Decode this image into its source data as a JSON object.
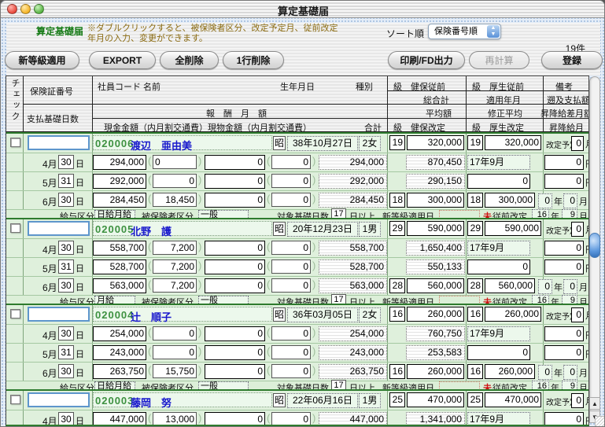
{
  "window": {
    "title": "算定基礎届"
  },
  "header": {
    "screen_title": "算定基礎届",
    "note_line1": "※ダブルクリックすると、被保険者区分、改定予定月、従前改定",
    "note_line2": "年月の入力、変更ができます。",
    "sort_label": "ソート順",
    "sort_value": "保険番号順",
    "count": "19件"
  },
  "toolbar": {
    "new_grade": "新等級適用",
    "export": "EXPORT",
    "delete_all": "全削除",
    "delete_row": "1行削除",
    "print_fd": "印刷/FD出力",
    "recalc": "再計算",
    "register": "登録"
  },
  "thead": {
    "check": "チェック",
    "hoken_no": "保険証番号",
    "shiharai_days": "支払基礎日数",
    "emp": "社員コード 名前",
    "birth": "生年月日",
    "kind": "種別",
    "hoshu": "報　酬　月　額",
    "cash_line": "現金金額（内月割交通費）現物金額（内月割交通費）",
    "goukei": "合計",
    "kenpo_before": "級　健保従前",
    "kosei_before": "級　厚生従前",
    "biko": "備考",
    "sougoukei": "総合計",
    "tekiyo_ym": "適用年月",
    "sokyuu": "遡及支払額",
    "heikin": "平均額",
    "shusei": "修正平均",
    "diff": "昇降給差月額",
    "kenpo_after": "級　健保改定",
    "kosei_after": "級　厚生改定",
    "updown_month": "昇降給月"
  },
  "labels": {
    "era": "昭",
    "kaitei_yotei": "改定予定",
    "month": "月",
    "day": "日",
    "yen": "円",
    "year": "年",
    "pay_type": "給与区分",
    "insured_type": "被保険者区分",
    "target_days": "対象基礎日数",
    "days_min": "日以上",
    "new_grade_date": "新等級適用日",
    "not_yet": "未",
    "prev_revision": "従前改定"
  },
  "colors": {
    "block_border": "#2e7b2e",
    "code_green": "#3d9140",
    "name_blue": "#1717cc",
    "note_brown": "#8a6a10",
    "alert_red": "#cc1111"
  },
  "employees": [
    {
      "code": "020006",
      "name": "渡辺　亜由美",
      "birth": "38年10月27日",
      "kind": "2女",
      "kenpo_grade": "19",
      "kenpo_amt": "320,000",
      "kosei_grade": "19",
      "kosei_amt": "320,000",
      "kaitei_month": "0",
      "months": [
        {
          "m": "4月",
          "d": "30",
          "cash": "294,000",
          "comm": "0",
          "comm_left": true,
          "inkind": "0",
          "comm2": "0",
          "total": "294,000",
          "sum": "870,450",
          "apply": "17年9月",
          "retro": "0"
        },
        {
          "m": "5月",
          "d": "31",
          "cash": "292,000",
          "comm": "0",
          "inkind": "0",
          "comm2": "0",
          "total": "292,000",
          "avg": "290,150",
          "adj": "0",
          "diff": "0"
        },
        {
          "m": "6月",
          "d": "30",
          "cash": "284,450",
          "comm": "18,450",
          "inkind": "0",
          "comm2": "0",
          "total": "284,450",
          "g1": "18",
          "a1": "300,000",
          "g2": "18",
          "a2": "300,000",
          "udy": "0",
          "udm": "0"
        }
      ],
      "footer": {
        "pay": "日給月給",
        "insured": "一般",
        "days": "17",
        "prev_y": "16",
        "prev_m": "9"
      }
    },
    {
      "code": "020005",
      "name": "北野　護",
      "birth": "20年12月23日",
      "kind": "1男",
      "kenpo_grade": "29",
      "kenpo_amt": "590,000",
      "kosei_grade": "29",
      "kosei_amt": "590,000",
      "kaitei_month": "0",
      "months": [
        {
          "m": "4月",
          "d": "30",
          "cash": "558,700",
          "comm": "7,200",
          "inkind": "0",
          "comm2": "0",
          "total": "558,700",
          "sum": "1,650,400",
          "apply": "17年9月",
          "retro": "0"
        },
        {
          "m": "5月",
          "d": "31",
          "cash": "528,700",
          "comm": "7,200",
          "inkind": "0",
          "comm2": "0",
          "total": "528,700",
          "avg": "550,133",
          "adj": "0",
          "diff": "0"
        },
        {
          "m": "6月",
          "d": "30",
          "cash": "563,000",
          "comm": "7,200",
          "inkind": "0",
          "comm2": "0",
          "total": "563,000",
          "g1": "28",
          "a1": "560,000",
          "g2": "28",
          "a2": "560,000",
          "udy": "0",
          "udm": "0"
        }
      ],
      "footer": {
        "pay": "月給",
        "insured": "一般",
        "days": "17",
        "prev_y": "16",
        "prev_m": "9"
      }
    },
    {
      "code": "020004",
      "name": "辻　順子",
      "birth": "36年03月05日",
      "kind": "2女",
      "kenpo_grade": "16",
      "kenpo_amt": "260,000",
      "kosei_grade": "16",
      "kosei_amt": "260,000",
      "kaitei_month": "0",
      "months": [
        {
          "m": "4月",
          "d": "30",
          "cash": "254,000",
          "comm": "0",
          "inkind": "0",
          "comm2": "0",
          "total": "254,000",
          "sum": "760,750",
          "apply": "17年9月",
          "retro": "0"
        },
        {
          "m": "5月",
          "d": "31",
          "cash": "243,000",
          "comm": "0",
          "inkind": "0",
          "comm2": "0",
          "total": "243,000",
          "avg": "253,583",
          "adj": "0",
          "diff": "0"
        },
        {
          "m": "6月",
          "d": "30",
          "cash": "263,750",
          "comm": "15,750",
          "inkind": "0",
          "comm2": "0",
          "total": "263,750",
          "g1": "16",
          "a1": "260,000",
          "g2": "16",
          "a2": "260,000",
          "udy": "0",
          "udm": "0"
        }
      ],
      "footer": {
        "pay": "日給月給",
        "insured": "一般",
        "days": "17",
        "prev_y": "16",
        "prev_m": "9"
      }
    },
    {
      "code": "020003",
      "name": "藤岡　努",
      "birth": "22年06月16日",
      "kind": "1男",
      "kenpo_grade": "25",
      "kenpo_amt": "470,000",
      "kosei_grade": "25",
      "kosei_amt": "470,000",
      "kaitei_month": "0",
      "months": [
        {
          "m": "4月",
          "d": "30",
          "cash": "447,000",
          "comm": "13,000",
          "inkind": "0",
          "comm2": "0",
          "total": "447,000",
          "sum": "1,341,000",
          "apply": "17年9月",
          "retro": "0"
        }
      ]
    }
  ]
}
